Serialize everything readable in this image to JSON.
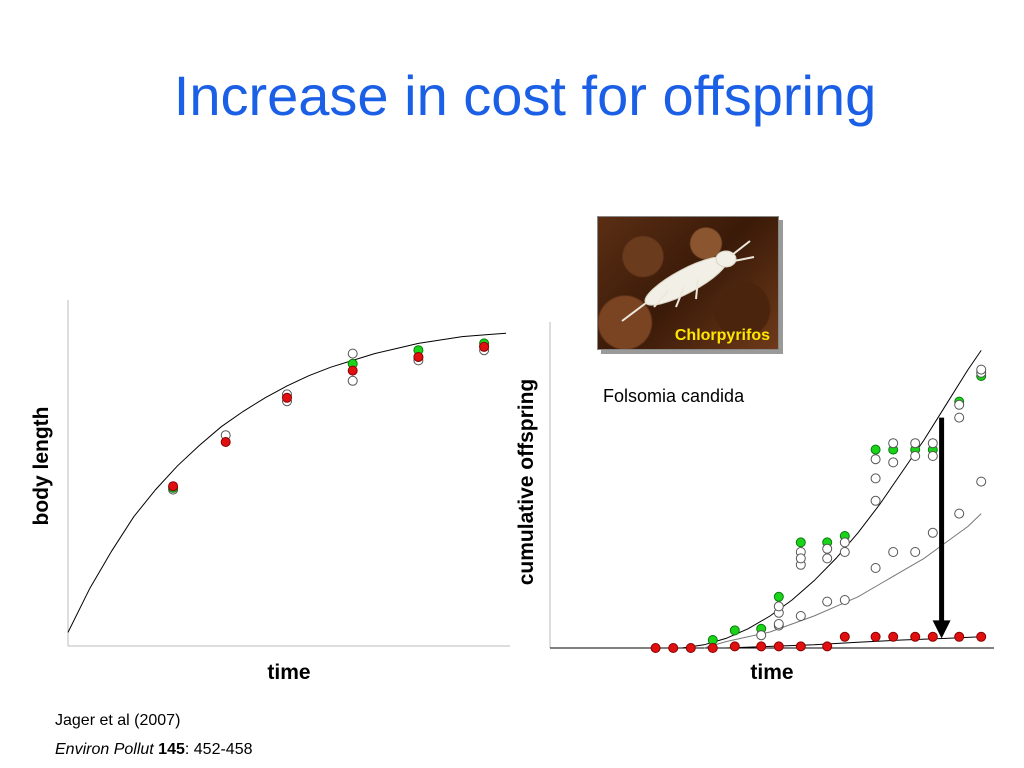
{
  "slide": {
    "title": "Increase in cost for offspring",
    "photo_label": "Chlorpyrifos",
    "species": "Folsomia candida",
    "citation": {
      "line1": "Jager et al (2007)",
      "journal": "Environ Pollut",
      "volume": "145",
      "pages": ": 452-458"
    }
  },
  "colors": {
    "title": "#1a5fe6",
    "green": "#19d419",
    "red": "#e01010",
    "open": "#ffffff",
    "arrow": "#000000"
  },
  "chart_data": [
    {
      "type": "scatter",
      "title": "",
      "xlabel": "time",
      "ylabel": "body length",
      "xlim": [
        0,
        1
      ],
      "ylim": [
        0,
        1
      ],
      "ticks": "none",
      "model_curve": {
        "x": [
          0,
          0.05,
          0.1,
          0.15,
          0.2,
          0.25,
          0.3,
          0.35,
          0.4,
          0.45,
          0.5,
          0.55,
          0.6,
          0.65,
          0.7,
          0.75,
          0.8,
          0.85,
          0.9,
          0.95,
          1.0
        ],
        "y": [
          0.04,
          0.17,
          0.28,
          0.38,
          0.46,
          0.53,
          0.59,
          0.645,
          0.69,
          0.73,
          0.765,
          0.795,
          0.82,
          0.84,
          0.86,
          0.875,
          0.89,
          0.9,
          0.91,
          0.915,
          0.92
        ]
      },
      "series": [
        {
          "name": "",
          "marker": "open",
          "points": [
            [
              0.24,
              0.46
            ],
            [
              0.36,
              0.62
            ],
            [
              0.5,
              0.72
            ],
            [
              0.5,
              0.74
            ],
            [
              0.65,
              0.78
            ],
            [
              0.65,
              0.86
            ],
            [
              0.8,
              0.84
            ],
            [
              0.8,
              0.85
            ],
            [
              0.95,
              0.87
            ],
            [
              0.95,
              0.88
            ]
          ]
        },
        {
          "name": "",
          "marker": "green",
          "points": [
            [
              0.24,
              0.465
            ],
            [
              0.65,
              0.83
            ],
            [
              0.8,
              0.87
            ],
            [
              0.95,
              0.89
            ]
          ]
        },
        {
          "name": "",
          "marker": "red",
          "points": [
            [
              0.24,
              0.47
            ],
            [
              0.36,
              0.6
            ],
            [
              0.5,
              0.73
            ],
            [
              0.65,
              0.81
            ],
            [
              0.8,
              0.85
            ],
            [
              0.95,
              0.88
            ]
          ]
        }
      ]
    },
    {
      "type": "scatter",
      "title": "",
      "xlabel": "time",
      "ylabel": "cumulative offspring",
      "xlim": [
        0,
        1
      ],
      "ylim": [
        0,
        1
      ],
      "ticks": "none",
      "model_curves": [
        {
          "name": "",
          "x": [
            0,
            0.3,
            0.35,
            0.4,
            0.45,
            0.5,
            0.55,
            0.6,
            0.65,
            0.7,
            0.75,
            0.8,
            0.85,
            0.9,
            0.95,
            0.98
          ],
          "y": [
            0,
            0,
            0.01,
            0.03,
            0.06,
            0.1,
            0.15,
            0.21,
            0.28,
            0.36,
            0.45,
            0.55,
            0.65,
            0.76,
            0.87,
            0.93
          ]
        },
        {
          "name": "",
          "x": [
            0.35,
            0.4,
            0.45,
            0.5,
            0.55,
            0.6,
            0.65,
            0.7,
            0.75,
            0.8,
            0.85,
            0.9,
            0.95,
            0.98
          ],
          "y": [
            0,
            0.02,
            0.035,
            0.05,
            0.075,
            0.1,
            0.13,
            0.16,
            0.2,
            0.24,
            0.28,
            0.33,
            0.38,
            0.42
          ]
        },
        {
          "name": "",
          "x": [
            0.4,
            0.5,
            0.6,
            0.7,
            0.8,
            0.9,
            0.98
          ],
          "y": [
            0,
            0.005,
            0.01,
            0.018,
            0.025,
            0.03,
            0.035
          ]
        }
      ],
      "series": [
        {
          "name": "",
          "marker": "green",
          "points": [
            [
              0.37,
              0.025
            ],
            [
              0.42,
              0.055
            ],
            [
              0.48,
              0.06
            ],
            [
              0.52,
              0.16
            ],
            [
              0.57,
              0.33
            ],
            [
              0.63,
              0.33
            ],
            [
              0.67,
              0.35
            ],
            [
              0.74,
              0.62
            ],
            [
              0.78,
              0.62
            ],
            [
              0.83,
              0.62
            ],
            [
              0.87,
              0.62
            ],
            [
              0.93,
              0.77
            ],
            [
              0.98,
              0.85
            ]
          ]
        },
        {
          "name": "",
          "marker": "open",
          "points": [
            [
              0.52,
              0.07
            ],
            [
              0.52,
              0.11
            ],
            [
              0.52,
              0.13
            ],
            [
              0.57,
              0.26
            ],
            [
              0.57,
              0.3
            ],
            [
              0.57,
              0.28
            ],
            [
              0.63,
              0.28
            ],
            [
              0.63,
              0.31
            ],
            [
              0.67,
              0.3
            ],
            [
              0.67,
              0.33
            ],
            [
              0.74,
              0.46
            ],
            [
              0.74,
              0.53
            ],
            [
              0.74,
              0.59
            ],
            [
              0.78,
              0.58
            ],
            [
              0.78,
              0.64
            ],
            [
              0.83,
              0.6
            ],
            [
              0.83,
              0.64
            ],
            [
              0.87,
              0.6
            ],
            [
              0.87,
              0.64
            ],
            [
              0.93,
              0.72
            ],
            [
              0.93,
              0.76
            ],
            [
              0.98,
              0.86
            ],
            [
              0.98,
              0.87
            ]
          ]
        },
        {
          "name": "",
          "marker": "open-mid",
          "points": [
            [
              0.48,
              0.04
            ],
            [
              0.52,
              0.075
            ],
            [
              0.57,
              0.1
            ],
            [
              0.63,
              0.145
            ],
            [
              0.67,
              0.15
            ],
            [
              0.74,
              0.25
            ],
            [
              0.78,
              0.3
            ],
            [
              0.83,
              0.3
            ],
            [
              0.87,
              0.36
            ],
            [
              0.93,
              0.42
            ],
            [
              0.98,
              0.52
            ]
          ]
        },
        {
          "name": "",
          "marker": "red",
          "points": [
            [
              0.24,
              0.0
            ],
            [
              0.28,
              0.0
            ],
            [
              0.32,
              0.0
            ],
            [
              0.37,
              0.0
            ],
            [
              0.42,
              0.005
            ],
            [
              0.48,
              0.005
            ],
            [
              0.52,
              0.005
            ],
            [
              0.57,
              0.005
            ],
            [
              0.63,
              0.005
            ],
            [
              0.67,
              0.035
            ],
            [
              0.74,
              0.035
            ],
            [
              0.78,
              0.035
            ],
            [
              0.83,
              0.035
            ],
            [
              0.87,
              0.035
            ],
            [
              0.93,
              0.035
            ],
            [
              0.98,
              0.035
            ]
          ]
        }
      ],
      "annotation_arrow": {
        "x": 0.89,
        "y_from": 0.72,
        "y_to": 0.03
      }
    }
  ]
}
